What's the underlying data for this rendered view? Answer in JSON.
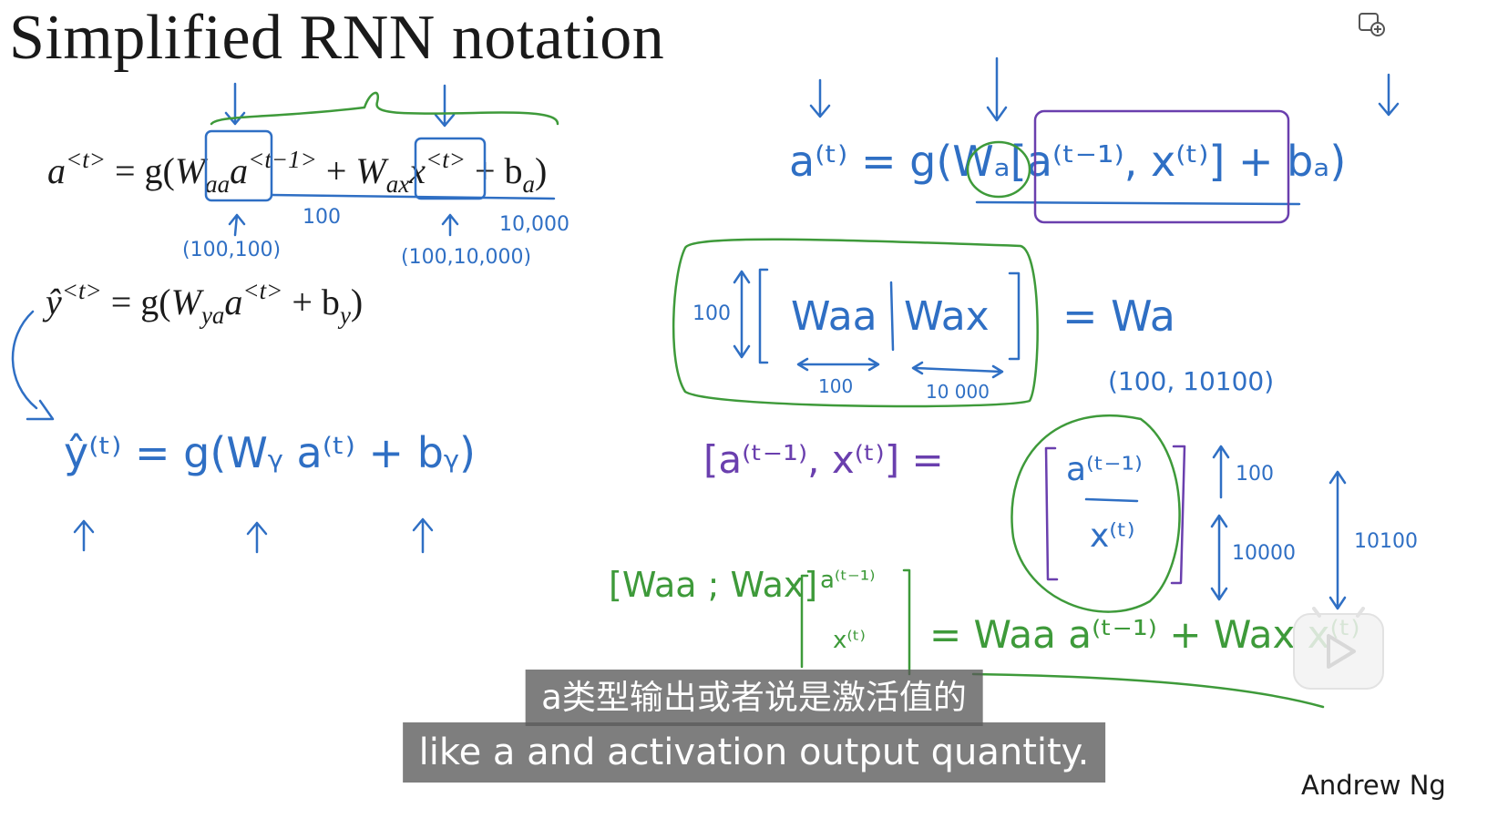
{
  "slide": {
    "title": "Simplified RNN notation",
    "author": "Andrew Ng"
  },
  "formulas": {
    "eq1": {
      "lhs": "a",
      "lhs_sup": "<t>",
      "eq": "= g(",
      "w1": "W",
      "w1_sub": "aa",
      "a1": "a",
      "a1_sup": "<t−1>",
      "plus": "+",
      "w2": "W",
      "w2_sub": "ax",
      "x": "x",
      "x_sup": "<t>",
      "plus2": "+ b",
      "b_sub": "a",
      "close": ")"
    },
    "eq2": {
      "lhs": "ŷ",
      "lhs_sup": "<t>",
      "eq": "= g(",
      "w": "W",
      "w_sub": "ya",
      "a": "a",
      "a_sup": "<t>",
      "plus": "+ b",
      "b_sub": "y",
      "close": ")"
    }
  },
  "annotations": {
    "dim_100_100": "(100,100)",
    "dim_100": "100",
    "dim_100_10000": "(100,10,000)",
    "dim_10000": "10,000",
    "hw_eq": "ŷ⁽ᵗ⁾ = g(Wᵧ a⁽ᵗ⁾ + bᵧ)",
    "right_eq": "a⁽ᵗ⁾ = g(Wₐ[a⁽ᵗ⁻¹⁾, x⁽ᵗ⁾] + bₐ)",
    "matrix_waa": "Waa",
    "matrix_wax": "Wax",
    "matrix_rows": "100",
    "matrix_cols_aa": "100",
    "matrix_cols_ax": "10 000",
    "equals_wa": "= Wa",
    "wa_dim": "(100, 10100)",
    "concat_lhs": "[a⁽ᵗ⁻¹⁾, x⁽ᵗ⁾] =",
    "stack_top": "a⁽ᵗ⁻¹⁾",
    "stack_bottom": "x⁽ᵗ⁾",
    "stack_dim_top": "100",
    "stack_dim_bottom": "10000",
    "stack_dim_total": "10100",
    "product_lhs": "[Waa ; Wax]",
    "product_vec_top": "a⁽ᵗ⁻¹⁾",
    "product_vec_bottom": "x⁽ᵗ⁾",
    "product_rhs": "= Waa a⁽ᵗ⁻¹⁾ + Wax x⁽ᵗ⁾"
  },
  "subtitles": {
    "chinese": "a类型输出或者说是激活值的",
    "english": "like a and activation output quantity."
  },
  "colors": {
    "blue_ink": "#2f6fc4",
    "green_ink": "#3e9a3a",
    "purple_ink": "#6a3fae",
    "text": "#1a1a1a",
    "subtitle_bg": "#5a5a5a"
  },
  "controls": {
    "add_icon": "window-add-icon",
    "play_icon": "play-icon"
  }
}
